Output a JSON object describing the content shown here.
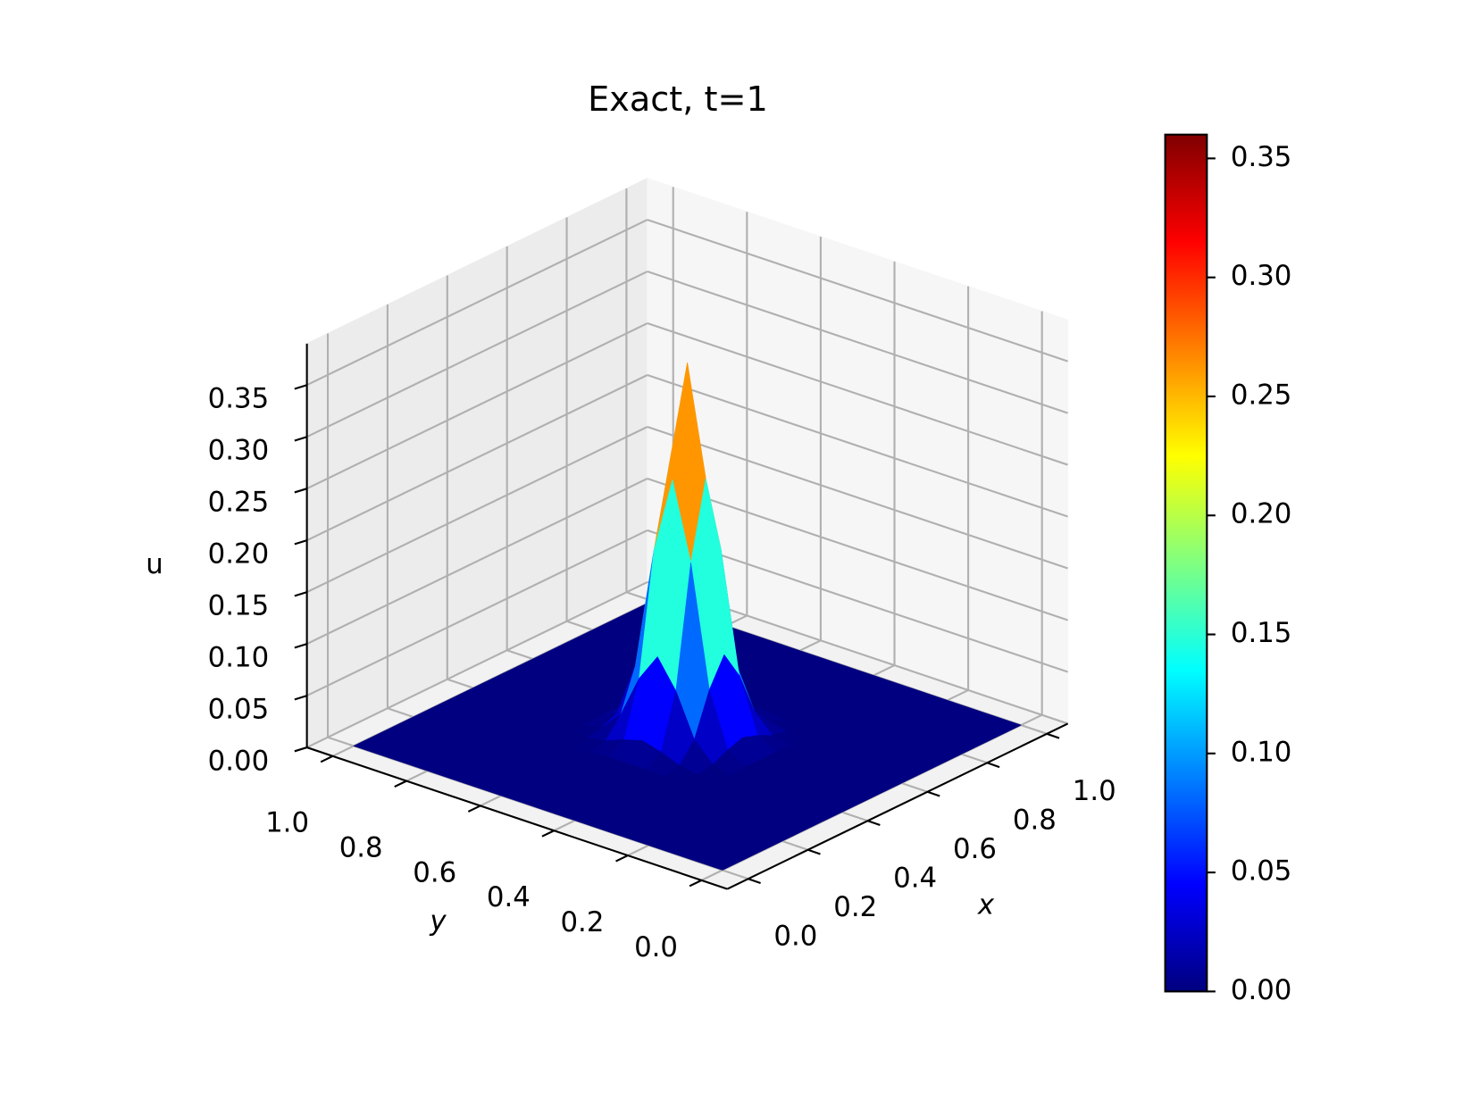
{
  "chart_data": {
    "type": "surface",
    "title": "Exact, t=1",
    "xlabel": "x",
    "ylabel": "y",
    "zlabel": "u",
    "x": [
      0,
      0.2,
      0.3,
      0.35,
      0.4,
      0.45,
      0.5,
      0.55,
      0.6,
      0.65,
      0.7,
      0.8,
      1
    ],
    "y": [
      0,
      0.2,
      0.3,
      0.35,
      0.4,
      0.45,
      0.5,
      0.55,
      0.6,
      0.65,
      0.7,
      0.8,
      1
    ],
    "z": [
      [
        0,
        0,
        0,
        0,
        0,
        0,
        0,
        0,
        0,
        0,
        0,
        0,
        0
      ],
      [
        0,
        0,
        0,
        0,
        0,
        0,
        0,
        0,
        0,
        0,
        0,
        0,
        0
      ],
      [
        0,
        0,
        0,
        0,
        0,
        0.001,
        0.001,
        0.001,
        0,
        0,
        0,
        0,
        0
      ],
      [
        0,
        0,
        0,
        0.001,
        0.004,
        0.011,
        0.016,
        0.011,
        0.004,
        0.001,
        0,
        0,
        0
      ],
      [
        0,
        0,
        0,
        0.004,
        0.022,
        0.063,
        0.09,
        0.063,
        0.022,
        0.004,
        0,
        0,
        0
      ],
      [
        0,
        0,
        0.001,
        0.011,
        0.063,
        0.18,
        0.254,
        0.18,
        0.063,
        0.011,
        0.001,
        0,
        0
      ],
      [
        0,
        0,
        0.001,
        0.016,
        0.09,
        0.254,
        0.36,
        0.254,
        0.09,
        0.016,
        0.001,
        0,
        0
      ],
      [
        0,
        0,
        0.001,
        0.011,
        0.063,
        0.18,
        0.254,
        0.18,
        0.063,
        0.011,
        0.001,
        0,
        0
      ],
      [
        0,
        0,
        0,
        0.004,
        0.022,
        0.063,
        0.09,
        0.063,
        0.022,
        0.004,
        0,
        0,
        0
      ],
      [
        0,
        0,
        0,
        0.001,
        0.004,
        0.011,
        0.016,
        0.011,
        0.004,
        0.001,
        0,
        0,
        0
      ],
      [
        0,
        0,
        0,
        0,
        0,
        0.001,
        0.001,
        0.001,
        0,
        0,
        0,
        0,
        0
      ],
      [
        0,
        0,
        0,
        0,
        0,
        0,
        0,
        0,
        0,
        0,
        0,
        0,
        0
      ],
      [
        0,
        0,
        0,
        0,
        0,
        0,
        0,
        0,
        0,
        0,
        0,
        0,
        0
      ]
    ],
    "xlim": [
      0,
      1
    ],
    "ylim": [
      0,
      1
    ],
    "zlim": [
      0,
      0.39
    ],
    "xticks": [
      {
        "value": 0,
        "label": "0.0"
      },
      0.2,
      0.4,
      0.6,
      0.8,
      {
        "value": 1,
        "label": "1.0"
      }
    ],
    "yticks": [
      {
        "value": 0,
        "label": "0.0"
      },
      0.2,
      0.4,
      0.6,
      0.8,
      {
        "value": 1,
        "label": "1.0"
      }
    ],
    "zticks": [
      {
        "value": 0,
        "label": "0.00"
      },
      0.05,
      {
        "value": 0.1,
        "label": "0.10"
      },
      0.15,
      {
        "value": 0.2,
        "label": "0.20"
      },
      0.25,
      {
        "value": 0.3,
        "label": "0.30"
      },
      0.35
    ],
    "colormap": "jet",
    "grid": true,
    "colorbar": {
      "clim": [
        0,
        0.36
      ],
      "ticks": [
        {
          "value": 0,
          "label": "0.00"
        },
        0.05,
        {
          "value": 0.1,
          "label": "0.10"
        },
        0.15,
        {
          "value": 0.2,
          "label": "0.20"
        },
        0.25,
        {
          "value": 0.3,
          "label": "0.30"
        },
        0.35
      ]
    }
  }
}
